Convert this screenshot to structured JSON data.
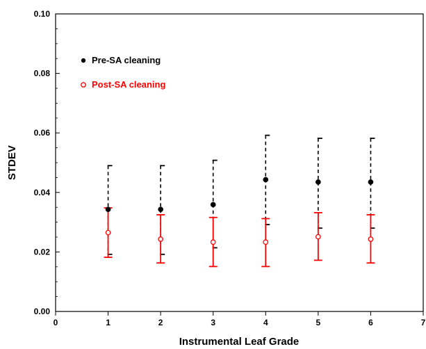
{
  "chart_data": {
    "type": "scatter",
    "title": "",
    "xlabel": "Instrumental Leaf Grade",
    "ylabel": "STDEV",
    "xlim": [
      0,
      7
    ],
    "ylim": [
      0.0,
      0.1
    ],
    "x_ticks": [
      0,
      1,
      2,
      3,
      4,
      5,
      6,
      7
    ],
    "y_ticks": [
      0.0,
      0.02,
      0.04,
      0.06,
      0.08,
      0.1
    ],
    "x_tick_labels": [
      "0",
      "1",
      "2",
      "3",
      "4",
      "5",
      "6",
      "7"
    ],
    "y_tick_labels": [
      "0.00",
      "0.02",
      "0.04",
      "0.06",
      "0.08",
      "0.10"
    ],
    "grid": false,
    "legend_position": "top-left",
    "series": [
      {
        "name": "Pre-SA cleaning",
        "color": "#000000",
        "marker": "filled-circle",
        "error_line": "dashed",
        "x": [
          1,
          2,
          3,
          4,
          5,
          6
        ],
        "y": [
          0.0343,
          0.0343,
          0.0359,
          0.0443,
          0.0435,
          0.0435
        ],
        "err_low": [
          0.0192,
          0.0192,
          0.0214,
          0.0292,
          0.028,
          0.028
        ],
        "err_high": [
          0.049,
          0.049,
          0.0508,
          0.0592,
          0.0582,
          0.0582
        ]
      },
      {
        "name": "Post-SA cleaning",
        "color": "#ff0000",
        "marker": "open-circle",
        "error_line": "solid",
        "x": [
          1,
          2,
          3,
          4,
          5,
          6
        ],
        "y": [
          0.0265,
          0.0243,
          0.0233,
          0.0233,
          0.0251,
          0.0243
        ],
        "err_low": [
          0.0182,
          0.0163,
          0.0151,
          0.0151,
          0.0172,
          0.0163
        ],
        "err_high": [
          0.0348,
          0.0325,
          0.0316,
          0.0312,
          0.0332,
          0.0325
        ]
      }
    ]
  }
}
